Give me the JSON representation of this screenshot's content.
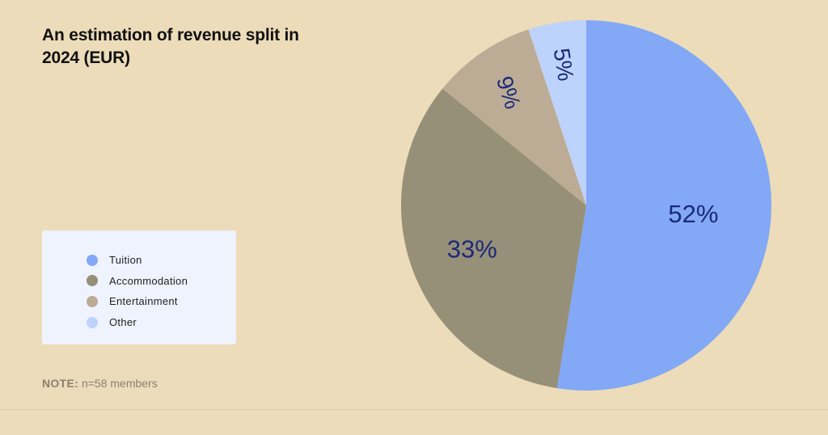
{
  "title": "An estimation of revenue split in 2024 (EUR)",
  "note": {
    "prefix": "NOTE:",
    "text": "n=58 members"
  },
  "chart_data": {
    "type": "pie",
    "title": "An estimation of revenue split in 2024 (EUR)",
    "categories": [
      "Tuition",
      "Accommodation",
      "Entertainment",
      "Other"
    ],
    "values": [
      52,
      33,
      9,
      5
    ],
    "labels": [
      "52%",
      "33%",
      "9%",
      "5%"
    ],
    "colors": [
      "#82a8f6",
      "#979079",
      "#bcac95",
      "#bed3fb"
    ],
    "legend_position": "left"
  },
  "colors": {
    "background": "#ecdcb9",
    "legend_background": "#eef3fd",
    "label_text": "#1b2a78"
  }
}
